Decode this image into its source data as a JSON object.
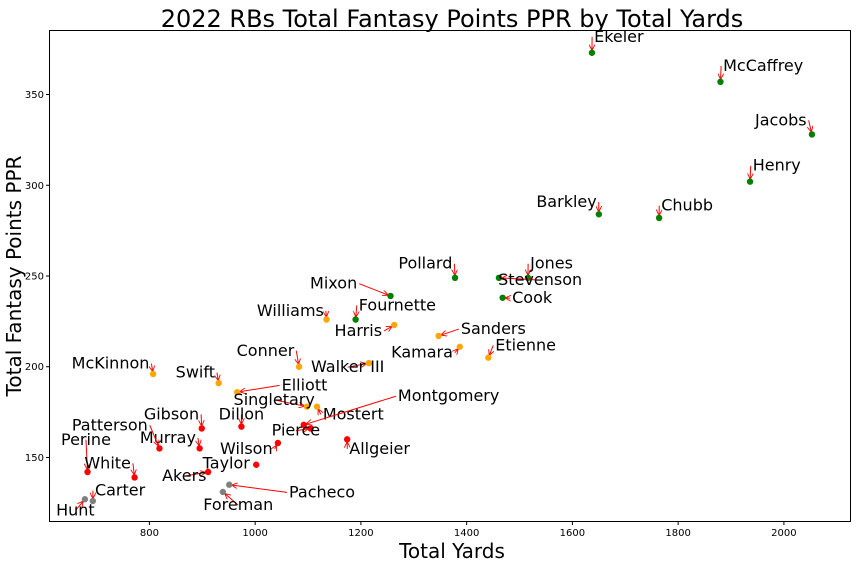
{
  "chart_data": {
    "type": "scatter",
    "title": "2022 RBs Total Fantasy Points PPR by Total Yards",
    "xlabel": "Total Yards",
    "ylabel": "Total Fantasy Points PPR",
    "xlim": [
      612,
      2125
    ],
    "ylim": [
      115,
      385
    ],
    "xticks": [
      800,
      1000,
      1200,
      1400,
      1600,
      1800,
      2000
    ],
    "yticks": [
      150,
      200,
      250,
      300,
      350
    ],
    "grid": false,
    "legend": "none",
    "colors": {
      "top": "#008000",
      "mid": "#ffa500",
      "low": "#ff0000",
      "bottom": "#808080",
      "arrow": "#ff0000"
    },
    "points": [
      {
        "name": "Ekeler",
        "x": 1637,
        "y": 373,
        "color": "#008000",
        "dx": 1641,
        "dy": 379,
        "anchor": "start"
      },
      {
        "name": "McCaffrey",
        "x": 1880,
        "y": 357,
        "color": "#008000",
        "dx": 1885,
        "dy": 363,
        "anchor": "start"
      },
      {
        "name": "Jacobs",
        "x": 2053,
        "y": 328,
        "color": "#008000",
        "dx": 2043,
        "dy": 333,
        "anchor": "end"
      },
      {
        "name": "Henry",
        "x": 1936,
        "y": 302,
        "color": "#008000",
        "dx": 1941,
        "dy": 308,
        "anchor": "start"
      },
      {
        "name": "Barkley",
        "x": 1650,
        "y": 284,
        "color": "#008000",
        "dx": 1646,
        "dy": 288,
        "anchor": "end"
      },
      {
        "name": "Chubb",
        "x": 1764,
        "y": 282,
        "color": "#008000",
        "dx": 1768,
        "dy": 286,
        "anchor": "start"
      },
      {
        "name": "Pollard",
        "x": 1378,
        "y": 249,
        "color": "#008000",
        "dx": 1373,
        "dy": 254,
        "anchor": "end"
      },
      {
        "name": "Jones",
        "x": 1516,
        "y": 249,
        "color": "#008000",
        "dx": 1520,
        "dy": 254,
        "anchor": "start"
      },
      {
        "name": "Stevenson",
        "x": 1461,
        "y": 249,
        "color": "#008000",
        "dx": 1539,
        "dy": 245,
        "anchor": "middle"
      },
      {
        "name": "Cook",
        "x": 1468,
        "y": 238,
        "color": "#008000",
        "dx": 1486,
        "dy": 235,
        "anchor": "start"
      },
      {
        "name": "Mixon",
        "x": 1256,
        "y": 239,
        "color": "#008000",
        "dx": 1193,
        "dy": 243,
        "anchor": "end"
      },
      {
        "name": "Fournette",
        "x": 1190,
        "y": 226,
        "color": "#008000",
        "dx": 1196,
        "dy": 231,
        "anchor": "start"
      },
      {
        "name": "Williams",
        "x": 1135,
        "y": 226,
        "color": "#ffa500",
        "dx": 1130,
        "dy": 228,
        "anchor": "end"
      },
      {
        "name": "Harris",
        "x": 1263,
        "y": 223,
        "color": "#ffa500",
        "dx": 1240,
        "dy": 217,
        "anchor": "end"
      },
      {
        "name": "Sanders",
        "x": 1347,
        "y": 217,
        "color": "#ffa500",
        "dx": 1389,
        "dy": 218,
        "anchor": "start"
      },
      {
        "name": "Kamara",
        "x": 1387,
        "y": 211,
        "color": "#ffa500",
        "dx": 1374,
        "dy": 205,
        "anchor": "end"
      },
      {
        "name": "Etienne",
        "x": 1441,
        "y": 205,
        "color": "#ffa500",
        "dx": 1454,
        "dy": 209,
        "anchor": "start"
      },
      {
        "name": "Conner",
        "x": 1083,
        "y": 200,
        "color": "#ffa500",
        "dx": 1074,
        "dy": 206,
        "anchor": "end"
      },
      {
        "name": "Walker III",
        "x": 1215,
        "y": 202,
        "color": "#ffa500",
        "dx": 1175,
        "dy": 197,
        "anchor": "middle"
      },
      {
        "name": "McKinnon",
        "x": 807,
        "y": 196,
        "color": "#ffa500",
        "dx": 800,
        "dy": 199,
        "anchor": "end"
      },
      {
        "name": "Swift",
        "x": 931,
        "y": 191,
        "color": "#ffa500",
        "dx": 924,
        "dy": 194,
        "anchor": "end"
      },
      {
        "name": "Elliott",
        "x": 966,
        "y": 186,
        "color": "#ffa500",
        "dx": 1050,
        "dy": 187,
        "anchor": "start"
      },
      {
        "name": "Singletary",
        "x": 1098,
        "y": 178,
        "color": "#ffa500",
        "dx": 1036,
        "dy": 179,
        "anchor": "middle"
      },
      {
        "name": "Mostert",
        "x": 1117,
        "y": 178,
        "color": "#ffa500",
        "dx": 1128,
        "dy": 171,
        "anchor": "start"
      },
      {
        "name": "Montgomery",
        "x": 1092,
        "y": 168,
        "color": "#ff0000",
        "dx": 1270,
        "dy": 181,
        "anchor": "start"
      },
      {
        "name": "Pierce",
        "x": 1105,
        "y": 166,
        "color": "#ff0000",
        "dx": 1077,
        "dy": 162,
        "anchor": "middle"
      },
      {
        "name": "Gibson",
        "x": 899,
        "y": 166,
        "color": "#ff0000",
        "dx": 894,
        "dy": 171,
        "anchor": "end"
      },
      {
        "name": "Dillon",
        "x": 974,
        "y": 167,
        "color": "#ff0000",
        "dx": 974,
        "dy": 171,
        "anchor": "middle"
      },
      {
        "name": "Murray",
        "x": 895,
        "y": 155,
        "color": "#ff0000",
        "dx": 888,
        "dy": 158,
        "anchor": "end"
      },
      {
        "name": "Patterson",
        "x": 819,
        "y": 155,
        "color": "#ff0000",
        "dx": 797,
        "dy": 165,
        "anchor": "end"
      },
      {
        "name": "Allgeier",
        "x": 1174,
        "y": 160,
        "color": "#ff0000",
        "dx": 1178,
        "dy": 152,
        "anchor": "start"
      },
      {
        "name": "Wilson",
        "x": 1043,
        "y": 158,
        "color": "#ff0000",
        "dx": 1033,
        "dy": 152,
        "anchor": "end"
      },
      {
        "name": "Perine",
        "x": 683,
        "y": 142,
        "color": "#ff0000",
        "dx": 680,
        "dy": 157,
        "anchor": "middle"
      },
      {
        "name": "White",
        "x": 772,
        "y": 139,
        "color": "#ff0000",
        "dx": 765,
        "dy": 144,
        "anchor": "end"
      },
      {
        "name": "Taylor",
        "x": 1002,
        "y": 146,
        "color": "#ff0000",
        "dx": 990,
        "dy": 144,
        "anchor": "end"
      },
      {
        "name": "Akers",
        "x": 911,
        "y": 142,
        "color": "#ff0000",
        "dx": 866,
        "dy": 137,
        "anchor": "middle"
      },
      {
        "name": "Pacheco",
        "x": 951,
        "y": 135,
        "color": "#808080",
        "dx": 1064,
        "dy": 128,
        "anchor": "start"
      },
      {
        "name": "Foreman",
        "x": 939,
        "y": 131,
        "color": "#808080",
        "dx": 968,
        "dy": 121,
        "anchor": "middle"
      },
      {
        "name": "Carter",
        "x": 693,
        "y": 126,
        "color": "#808080",
        "dx": 697,
        "dy": 129,
        "anchor": "start"
      },
      {
        "name": "Hunt",
        "x": 678,
        "y": 127,
        "color": "#808080",
        "dx": 660,
        "dy": 118,
        "anchor": "middle"
      }
    ]
  }
}
